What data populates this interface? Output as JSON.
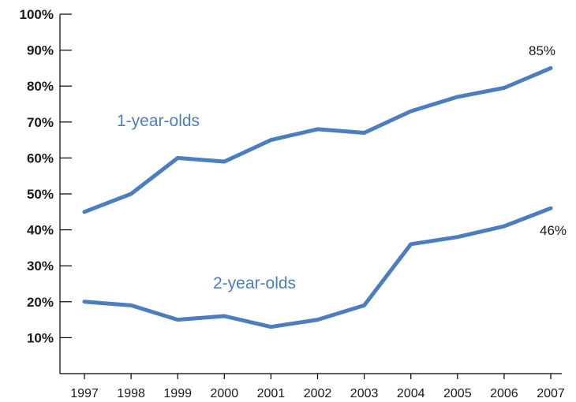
{
  "chart_data": {
    "type": "line",
    "categories": [
      "1997",
      "1998",
      "1999",
      "2000",
      "2001",
      "2002",
      "2003",
      "2004",
      "2005",
      "2006",
      "2007"
    ],
    "yticks": [
      "10%",
      "20%",
      "30%",
      "40%",
      "50%",
      "60%",
      "70%",
      "80%",
      "90%",
      "100%"
    ],
    "ylim": [
      0,
      100
    ],
    "grid": false,
    "series": [
      {
        "name": "1-year-olds",
        "values": [
          45,
          50,
          60,
          59,
          65,
          68,
          67,
          73,
          77,
          79.5,
          85
        ],
        "color": "#4a7ec0",
        "end_label": "85%"
      },
      {
        "name": "2-year-olds",
        "values": [
          20,
          19,
          15,
          16,
          13,
          15,
          19,
          36,
          38,
          41,
          46
        ],
        "color": "#4a7ec0",
        "end_label": "46%"
      }
    ]
  }
}
